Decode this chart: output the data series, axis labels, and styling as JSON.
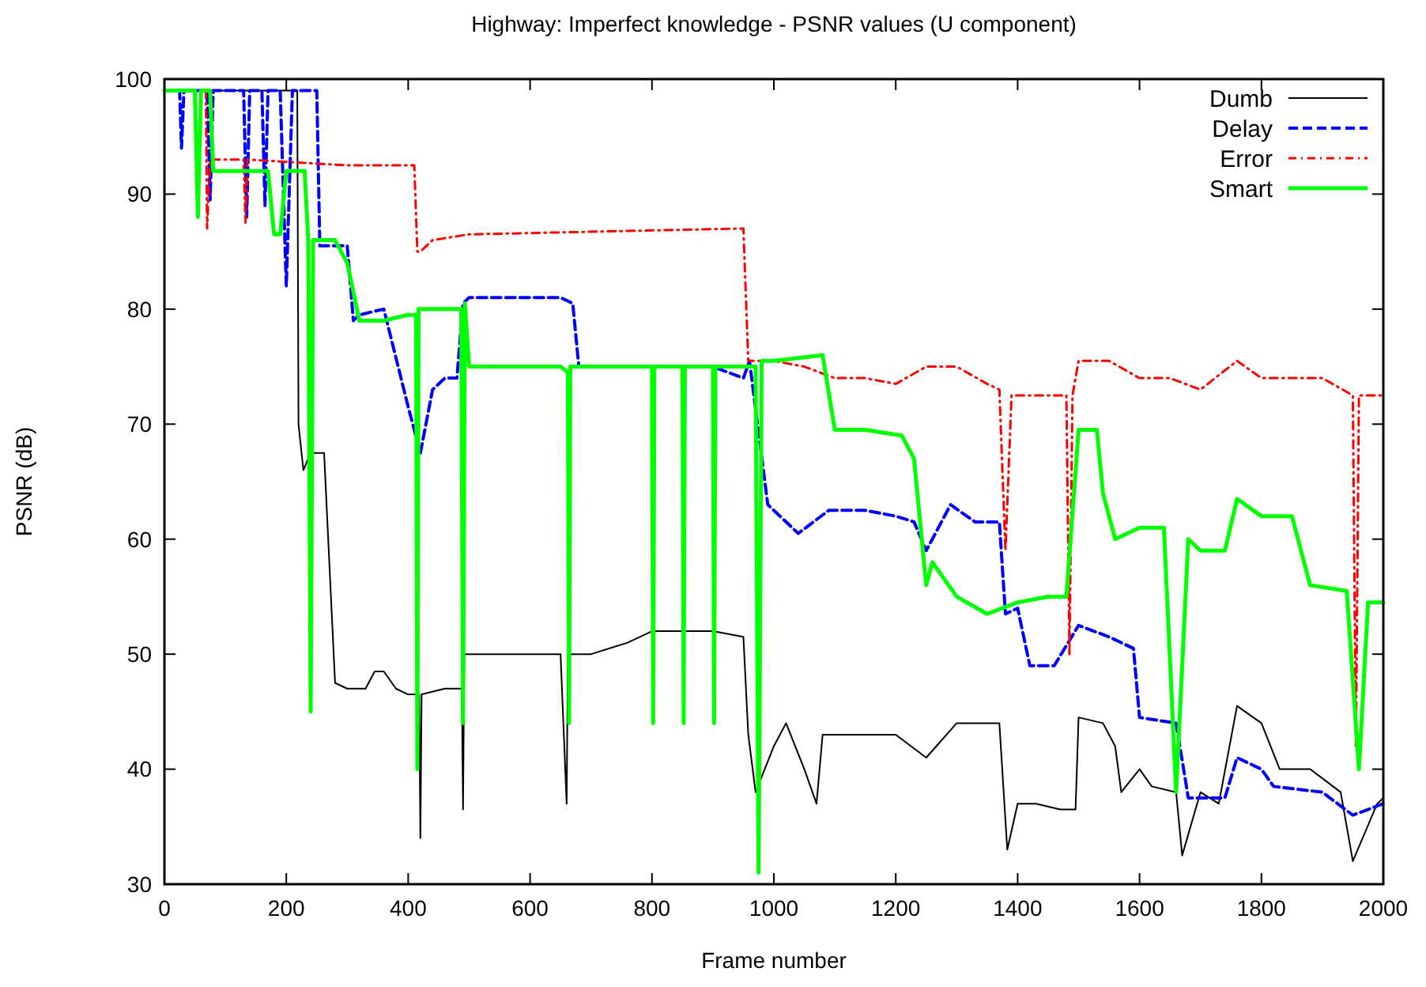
{
  "chart_data": {
    "type": "line",
    "title": "Highway: Imperfect knowledge - PSNR values (U component)",
    "xlabel": "Frame number",
    "ylabel": "PSNR (dB)",
    "xlim": [
      0,
      2000
    ],
    "xticks": [
      0,
      200,
      400,
      600,
      800,
      1000,
      1200,
      1400,
      1600,
      1800,
      2000
    ],
    "ylim": [
      30,
      100
    ],
    "yticks": [
      30,
      40,
      50,
      60,
      70,
      80,
      90,
      100
    ],
    "grid": false,
    "legend": "top right",
    "marker": "none",
    "series": [
      {
        "name": "Dumb",
        "color": "#000000",
        "line_style": "solid",
        "x": [
          0,
          218,
          220,
          228,
          240,
          262,
          280,
          300,
          330,
          345,
          360,
          380,
          400,
          418,
          420,
          422,
          460,
          488,
          490,
          492,
          500,
          650,
          660,
          662,
          700,
          760,
          800,
          900,
          950,
          958,
          970,
          1000,
          1020,
          1050,
          1070,
          1080,
          1200,
          1250,
          1300,
          1370,
          1383,
          1400,
          1430,
          1470,
          1495,
          1500,
          1540,
          1560,
          1570,
          1600,
          1620,
          1660,
          1670,
          1700,
          1730,
          1760,
          1800,
          1830,
          1880,
          1930,
          1950,
          1990,
          2000
        ],
        "values": [
          99,
          99,
          70,
          66,
          67.5,
          67.5,
          47.5,
          47,
          47,
          48.5,
          48.5,
          47,
          46.5,
          46.5,
          34,
          46.5,
          47,
          47,
          36.5,
          50,
          50,
          50,
          37,
          50,
          50,
          51,
          52,
          52,
          51.5,
          43,
          38,
          42,
          44,
          40,
          37,
          43,
          43,
          41,
          44,
          44,
          33,
          37,
          37,
          36.5,
          36.5,
          44.5,
          44,
          42,
          38,
          40,
          38.5,
          38,
          32.5,
          38,
          37,
          45.5,
          44,
          40,
          40,
          38,
          32,
          37,
          37.5
        ]
      },
      {
        "name": "Delay",
        "color": "#0000ff",
        "line_style": "dashed",
        "x": [
          0,
          25,
          28,
          32,
          70,
          75,
          80,
          130,
          135,
          140,
          160,
          165,
          170,
          190,
          200,
          210,
          250,
          255,
          260,
          300,
          310,
          320,
          360,
          400,
          420,
          440,
          460,
          480,
          490,
          500,
          650,
          670,
          680,
          700,
          900,
          950,
          960,
          990,
          1040,
          1090,
          1150,
          1200,
          1230,
          1250,
          1290,
          1330,
          1370,
          1380,
          1400,
          1420,
          1460,
          1500,
          1550,
          1590,
          1600,
          1660,
          1680,
          1740,
          1760,
          1800,
          1820,
          1900,
          1950,
          2000
        ],
        "values": [
          99,
          99,
          94,
          99,
          99,
          89.5,
          99,
          99,
          88,
          99,
          99,
          89,
          99,
          99,
          82,
          99,
          99,
          85.5,
          85.5,
          85.5,
          79,
          79.5,
          80,
          71.5,
          67.5,
          73,
          74,
          74,
          80.5,
          81,
          81,
          80.5,
          75,
          75,
          75,
          74,
          75.5,
          63,
          60.5,
          62.5,
          62.5,
          62,
          61.5,
          59,
          63,
          61.5,
          61.5,
          53.5,
          54,
          49,
          49,
          52.5,
          51.5,
          50.5,
          44.5,
          44,
          37.5,
          37.5,
          41,
          40,
          38.5,
          38,
          36,
          37
        ]
      },
      {
        "name": "Error",
        "color": "#ff0000",
        "line_style": "dotted",
        "x": [
          68,
          70,
          75,
          130,
          133,
          136,
          300,
          410,
          415,
          420,
          440,
          500,
          940,
          950,
          958,
          962,
          1000,
          1050,
          1100,
          1150,
          1200,
          1250,
          1300,
          1350,
          1370,
          1380,
          1390,
          1400,
          1480,
          1485,
          1490,
          1500,
          1550,
          1600,
          1650,
          1700,
          1760,
          1800,
          1900,
          1950,
          1955,
          1960,
          2000
        ],
        "values": [
          99,
          87,
          93,
          93,
          87.5,
          93,
          92.5,
          92.5,
          85,
          85,
          86,
          86.5,
          87,
          87,
          75.5,
          75.5,
          75.5,
          75,
          74,
          74,
          73.5,
          75,
          75,
          73.5,
          73,
          59,
          72.5,
          72.5,
          72.5,
          50,
          72.5,
          75.5,
          75.5,
          74,
          74,
          73,
          75.5,
          74,
          74,
          72.5,
          42,
          72.5,
          72.5
        ]
      },
      {
        "name": "Smart",
        "color": "#00ff00",
        "line_style": "solid",
        "x": [
          0,
          50,
          55,
          60,
          75,
          80,
          170,
          180,
          190,
          200,
          230,
          236,
          240,
          244,
          280,
          300,
          320,
          360,
          400,
          413,
          415,
          417,
          480,
          487,
          490,
          493,
          500,
          650,
          662,
          664,
          666,
          700,
          800,
          802,
          804,
          850,
          852,
          854,
          900,
          902,
          904,
          950,
          965,
          970,
          975,
          980,
          1000,
          1080,
          1100,
          1150,
          1210,
          1230,
          1250,
          1260,
          1300,
          1350,
          1400,
          1450,
          1480,
          1500,
          1530,
          1540,
          1560,
          1600,
          1640,
          1660,
          1680,
          1700,
          1740,
          1760,
          1800,
          1850,
          1880,
          1940,
          1960,
          1975,
          2000
        ],
        "values": [
          99,
          99,
          88,
          99,
          99,
          92,
          92,
          86.5,
          86.5,
          92,
          92,
          86,
          45,
          86,
          86,
          84,
          79,
          79,
          79.5,
          79.5,
          40,
          80,
          80,
          80,
          44,
          80.5,
          75,
          75,
          74.5,
          44,
          75,
          75,
          75,
          44,
          75,
          75,
          44,
          75,
          75,
          44,
          75,
          75,
          75,
          75,
          31,
          75.5,
          75.5,
          76,
          69.5,
          69.5,
          69,
          67,
          56,
          58,
          55,
          53.5,
          54.5,
          55,
          55,
          69.5,
          69.5,
          64,
          60,
          61,
          61,
          38,
          60,
          59,
          59,
          63.5,
          62,
          62,
          56,
          55.5,
          40,
          54.5,
          54.5
        ]
      }
    ]
  }
}
